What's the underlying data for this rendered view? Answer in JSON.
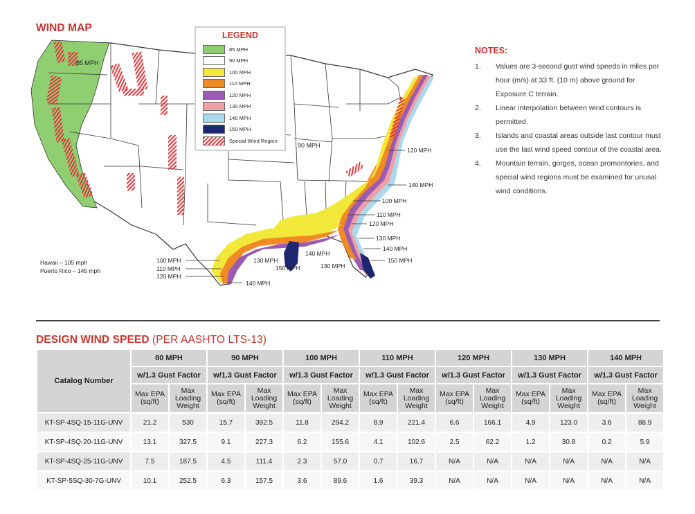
{
  "map": {
    "title": "WIND MAP",
    "regions": {
      "west": "85 MPH",
      "central": "90 MPH",
      "hawaii": "Hawaii – 105 mph",
      "puerto_rico": "Puerto Rico – 145 mph"
    },
    "atlantic_labels": [
      "120 MPH",
      "140 MPH",
      "100 MPH",
      "110 MPH",
      "120 MPH",
      "130 MPH",
      "140 MPH",
      "150 MPH"
    ],
    "gulf_left_labels": [
      "100 MPH",
      "110 MPH",
      "120 MPH"
    ],
    "gulf_bottom_labels": [
      "140 MPH",
      "130 MPH",
      "150 MPH",
      "140 MPH",
      "130 MPH"
    ]
  },
  "legend": {
    "title": "LEGEND",
    "items": [
      {
        "label": "85 MPH",
        "color": "#8fcf72"
      },
      {
        "label": "90 MPH",
        "color": "#ffffff"
      },
      {
        "label": "100 MPH",
        "color": "#f2e83a"
      },
      {
        "label": "110 MPH",
        "color": "#f08a24"
      },
      {
        "label": "120 MPH",
        "color": "#9a5cb0"
      },
      {
        "label": "130 MPH",
        "color": "#ef9fa6"
      },
      {
        "label": "140 MPH",
        "color": "#aad9ec"
      },
      {
        "label": "150 MPH",
        "color": "#1d2770"
      },
      {
        "label": "Special Wind Region",
        "color": "hatch"
      }
    ]
  },
  "notes": {
    "title": "NOTES:",
    "items": [
      {
        "num": "1.",
        "text": "Values are 3-second gust wind speeds in miles per hour (m/s) at 33 ft. (10 m) above ground for Exposure C terrain."
      },
      {
        "num": "2.",
        "text": "Linear interpolation between wind contours is permitted."
      },
      {
        "num": "3.",
        "text": "Islands and coastal areas outside last contour must use the last wind speed contour of the coastal area."
      },
      {
        "num": "4.",
        "text": "Mountain terrain, gorges, ocean promontories, and special wind regions must be examined for unusal wind conditions."
      }
    ]
  },
  "design": {
    "title": "DESIGN WIND SPEED",
    "subtitle": "(PER AASHTO LTS-13)",
    "catalog_header": "Catalog Number",
    "speeds": [
      "80 MPH",
      "90 MPH",
      "100 MPH",
      "110 MPH",
      "120 MPH",
      "130 MPH",
      "140 MPH"
    ],
    "gust_label": "w/1.3 Gust Factor",
    "col_epa": "Max EPA (sq/ft)",
    "col_weight": "Max Loading Weight",
    "rows": [
      {
        "catalog": "KT-SP-4SQ-15-11G-UNV",
        "values": [
          "21.2",
          "530",
          "15.7",
          "392.5",
          "11.8",
          "294.2",
          "8.9",
          "221.4",
          "6.6",
          "166.1",
          "4.9",
          "123.0",
          "3.6",
          "88.9"
        ]
      },
      {
        "catalog": "KT-SP-4SQ-20-11G-UNV",
        "values": [
          "13.1",
          "327.5",
          "9.1",
          "227.3",
          "6.2",
          "155.6",
          "4.1",
          "102.6",
          "2.5",
          "62.2",
          "1.2",
          "30.8",
          "0.2",
          "5.9"
        ]
      },
      {
        "catalog": "KT-SP-4SQ-25-11G-UNV",
        "values": [
          "7.5",
          "187.5",
          "4.5",
          "111.4",
          "2.3",
          "57.0",
          "0.7",
          "16.7",
          "N/A",
          "N/A",
          "N/A",
          "N/A",
          "N/A",
          "N/A"
        ]
      },
      {
        "catalog": "KT-SP-5SQ-30-7G-UNV",
        "values": [
          "10.1",
          "252.5",
          "6.3",
          "157.5",
          "3.6",
          "89.6",
          "1.6",
          "39.3",
          "N/A",
          "N/A",
          "N/A",
          "N/A",
          "N/A",
          "N/A"
        ]
      }
    ]
  }
}
